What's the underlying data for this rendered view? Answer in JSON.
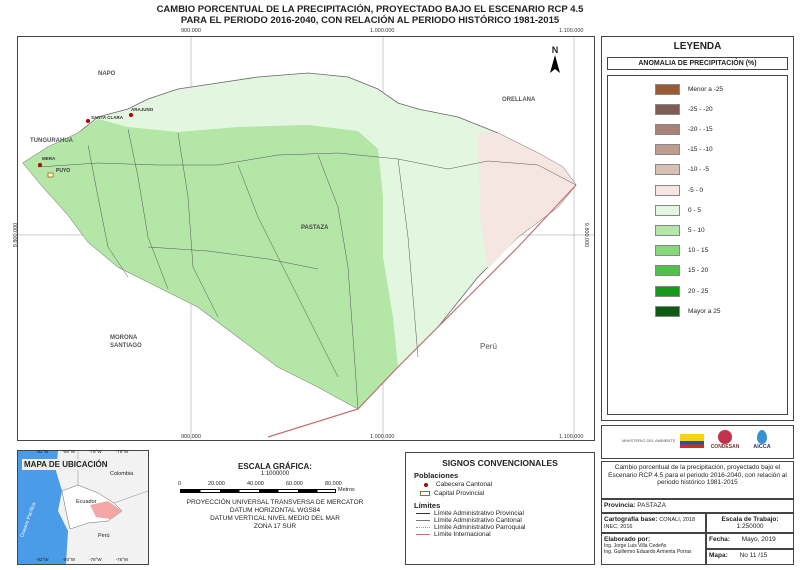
{
  "title": {
    "line1": "CAMBIO PORCENTUAL DE LA PRECIPITACIÓN, PROYECTADO BAJO EL ESCENARIO RCP 4.5",
    "line2": "PARA EL PERIODO 2016-2040, CON RELACIÓN AL PERIODO HISTÓRICO 1981-2015"
  },
  "grid": {
    "x_top": [
      "900.000",
      "1.000.000",
      "1.100.000"
    ],
    "x_bottom": [
      "900.000",
      "1.000.000",
      "1.100.000"
    ],
    "y_left": "9.800.000",
    "y_right": "9.800.000"
  },
  "map_labels": {
    "napo": "NAPO",
    "orellana": "ORELLANA",
    "tungurahua": "TUNGURAHUA",
    "pastaza": "PASTAZA",
    "morona": "MORONA",
    "santiago": "SANTIAGO",
    "peru": "Perú",
    "arajuno": "ARAJUNO",
    "santa_clara": "SANTA CLARA",
    "mera": "MERA",
    "puyo": "PUYO",
    "north": "N"
  },
  "legend": {
    "title": "LEYENDA",
    "subtitle": "ANOMALIA DE PRECIPITACIÓN (%)",
    "classes": [
      {
        "label": "Menor a -25",
        "color": "#9a5a34"
      },
      {
        "label": "-25 - -20",
        "color": "#7d5d54"
      },
      {
        "label": "-20 - -15",
        "color": "#a88278"
      },
      {
        "label": "-15 - -10",
        "color": "#bf9b90"
      },
      {
        "label": "-10 - -5",
        "color": "#d9bfb4"
      },
      {
        "label": "-5 - 0",
        "color": "#f6e6e2"
      },
      {
        "label": "0 - 5",
        "color": "#e3f6e0"
      },
      {
        "label": "5 - 10",
        "color": "#b4e6a8"
      },
      {
        "label": "10 - 15",
        "color": "#86d87a"
      },
      {
        "label": "15 - 20",
        "color": "#50c24a"
      },
      {
        "label": "20 - 25",
        "color": "#159a18"
      },
      {
        "label": "Mayor a 25",
        "color": "#0d5b14"
      }
    ]
  },
  "location_map": {
    "title": "MAPA DE UBICACIÓN",
    "top_ticks": [
      "-82°W",
      "-80°W",
      "-78°W",
      "-76°W"
    ],
    "bottom_ticks": [
      "-82°W",
      "-80°W",
      "-78°W",
      "-76°W"
    ],
    "colombia": "Colombia",
    "ecuador": "Ecuador",
    "peru": "Perú",
    "ocean": "Oceano Pacífico"
  },
  "scale": {
    "title": "ESCALA GRÁFICA:",
    "ratio": "1:1000000",
    "ticks": [
      "0",
      "20.000",
      "40.000",
      "60.000",
      "80.000"
    ],
    "unit": "Metros",
    "projection": [
      "PROYECCIÓN UNIVERSAL TRANSVERSA DE MERCATOR",
      "DATUM HORIZONTAL WGS84",
      "DATUM VERTICAL NIVEL MEDIO DEL MAR",
      "ZONA 17 SUR"
    ]
  },
  "signs": {
    "title": "SIGNOS CONVENCIONALES",
    "populations_header": "Poblaciones",
    "cabecera": "Cabecera Cantonal",
    "capital": "Capital Provincial",
    "limits_header": "Límites",
    "limits": [
      "Límite Administrativo Provincial",
      "Límite Administrativo Cantonal",
      "Límite Administrativo Parroquial",
      "Límite Internacional"
    ]
  },
  "logos": {
    "ministerio": "MINISTERIO DEL AMBIENTE",
    "condesan": "CONDESAN",
    "aicca": "AICCA"
  },
  "info": {
    "description": "Cambio porcentual de la precipitación, proyectado bajo el Escenario RCP 4.5 para el periodo 2016-2040, con relación al periodo histórico 1981-2015",
    "provincia_label": "Provincia:",
    "provincia": "PASTAZA",
    "cartografia_label": "Cartografía base:",
    "cartografia": "CONALI, 2018 INEC, 2016",
    "escala_label": "Escala de Trabajo:",
    "escala": "1:250000",
    "elaborado_label": "Elaborado por:",
    "elaborado": [
      "Ing. Jorge Luis Villa Cedeño",
      "Ing. Guillermo Eduardo Armenta Porras"
    ],
    "fecha_label": "Fecha:",
    "fecha": "Mayo, 2019",
    "mapa_label": "Mapa:",
    "mapa": "No 11 /15"
  }
}
